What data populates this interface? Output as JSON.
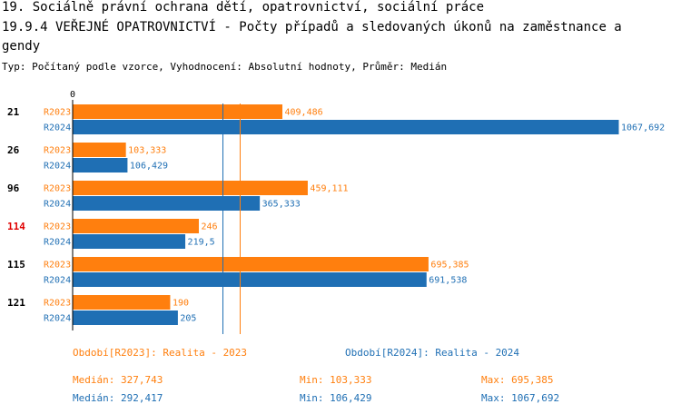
{
  "title_line1": "19. Sociálně právní ochrana dětí, opatrovnictví, sociální práce",
  "title_line2": "19.9.4 VEŘEJNÉ OPATROVNICTVÍ - Počty případů a sledovaných úkonů na zaměstnance a",
  "title_line3": "gendy",
  "subtitle": "Typ: Počítaný podle vzorce, Vyhodnocení: Absolutní hodnoty, Průměr: Medián",
  "chart_data": {
    "type": "bar",
    "orientation": "horizontal",
    "x_tick_label": "0",
    "categories": [
      "21",
      "26",
      "96",
      "114",
      "115",
      "121"
    ],
    "highlighted_category": "114",
    "series": [
      {
        "name": "R2023",
        "values": [
          409.486,
          103.333,
          459.111,
          246,
          695.385,
          190
        ],
        "labels": [
          "409,486",
          "103,333",
          "459,111",
          "246",
          "695,385",
          "190"
        ]
      },
      {
        "name": "R2024",
        "values": [
          1067.692,
          106.429,
          365.333,
          219.5,
          691.538,
          205
        ],
        "labels": [
          "1067,692",
          "106,429",
          "365,333",
          "219,5",
          "691,538",
          "205"
        ]
      }
    ],
    "reference_lines": [
      {
        "series": "R2023",
        "value": 327.743
      },
      {
        "series": "R2024",
        "value": 292.417
      }
    ],
    "xlim": [
      0,
      1067.692
    ],
    "colors": {
      "R2023": "#ff7f0e",
      "R2024": "#1f6fb4",
      "highlight": "#e00000",
      "axis": "#000000"
    }
  },
  "legend": {
    "r2023": "Období[R2023]: Realita - 2023",
    "r2024": "Období[R2024]: Realita - 2024"
  },
  "stats": {
    "r2023": {
      "median": "Medián: 327,743",
      "min": "Min: 103,333",
      "max": "Max: 695,385"
    },
    "r2024": {
      "median": "Medián: 292,417",
      "min": "Min: 106,429",
      "max": "Max: 1067,692"
    }
  }
}
